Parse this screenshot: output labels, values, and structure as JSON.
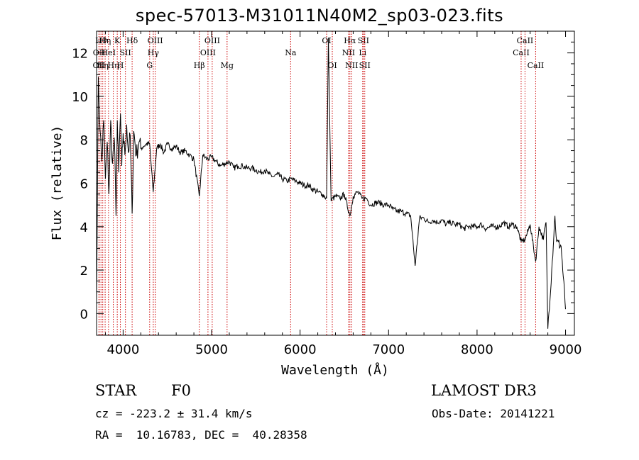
{
  "chart_data": {
    "type": "line",
    "title": "spec-57013-M31011N40M2_sp03-023.fits",
    "xlabel": "Wavelength (Å)",
    "ylabel": "Flux (relative)",
    "xlim": [
      3700,
      9100
    ],
    "ylim": [
      -1.0,
      13.0
    ],
    "xticks": [
      4000,
      5000,
      6000,
      7000,
      8000,
      9000
    ],
    "yticks": [
      0,
      2,
      4,
      6,
      8,
      10,
      12
    ],
    "series": [
      {
        "name": "spectrum",
        "x": [
          3700,
          3720,
          3740,
          3760,
          3780,
          3800,
          3820,
          3840,
          3860,
          3880,
          3900,
          3920,
          3934,
          3950,
          3970,
          3985,
          4000,
          4020,
          4040,
          4060,
          4080,
          4102,
          4120,
          4150,
          4180,
          4200,
          4230,
          4260,
          4300,
          4340,
          4380,
          4420,
          4460,
          4500,
          4550,
          4600,
          4650,
          4700,
          4750,
          4800,
          4861,
          4900,
          4950,
          5000,
          5050,
          5100,
          5150,
          5200,
          5250,
          5300,
          5350,
          5400,
          5450,
          5500,
          5550,
          5600,
          5650,
          5700,
          5750,
          5800,
          5850,
          5900,
          5950,
          6000,
          6050,
          6100,
          6150,
          6200,
          6250,
          6300,
          6320,
          6350,
          6400,
          6450,
          6500,
          6563,
          6600,
          6650,
          6700,
          6750,
          6800,
          6850,
          6900,
          6950,
          7000,
          7050,
          7100,
          7150,
          7200,
          7250,
          7300,
          7350,
          7400,
          7450,
          7500,
          7550,
          7600,
          7650,
          7700,
          7750,
          7800,
          7850,
          7900,
          7950,
          8000,
          8050,
          8100,
          8150,
          8200,
          8250,
          8300,
          8350,
          8400,
          8450,
          8498,
          8542,
          8600,
          8662,
          8700,
          8750,
          8780,
          8800,
          8850,
          8880,
          8900,
          8950,
          9000
        ],
        "y": [
          0.6,
          10.9,
          8.4,
          7.0,
          8.9,
          6.2,
          7.9,
          5.5,
          8.9,
          6.9,
          8.1,
          4.5,
          8.9,
          6.5,
          9.2,
          6.8,
          8.3,
          7.3,
          8.7,
          7.4,
          8.2,
          4.6,
          8.4,
          7.3,
          7.9,
          7.6,
          7.7,
          7.8,
          7.8,
          5.6,
          7.6,
          7.8,
          7.4,
          7.8,
          7.6,
          7.7,
          7.4,
          7.5,
          7.3,
          7.1,
          5.4,
          7.3,
          7.1,
          7.2,
          7.0,
          6.8,
          6.9,
          7.0,
          6.7,
          6.8,
          6.8,
          6.7,
          6.7,
          6.6,
          6.5,
          6.6,
          6.4,
          6.3,
          6.4,
          6.2,
          6.1,
          6.2,
          6.1,
          6.0,
          5.9,
          5.9,
          5.7,
          5.6,
          5.5,
          5.3,
          12.7,
          5.2,
          5.4,
          5.3,
          5.5,
          4.5,
          5.4,
          5.6,
          5.3,
          5.3,
          5.0,
          5.1,
          5.1,
          5.0,
          5.0,
          4.8,
          4.7,
          4.7,
          4.6,
          4.5,
          2.2,
          4.4,
          4.4,
          4.2,
          4.3,
          4.2,
          4.3,
          4.1,
          4.2,
          4.1,
          4.1,
          3.9,
          4.0,
          4.0,
          4.0,
          4.1,
          3.9,
          4.0,
          4.0,
          4.0,
          4.2,
          4.0,
          4.1,
          4.0,
          3.3,
          3.4,
          4.1,
          2.4,
          4.0,
          3.4,
          4.2,
          -0.7,
          2.4,
          4.5,
          3.3,
          3.1,
          0.2
        ]
      }
    ],
    "line_markers": [
      {
        "x": 3727,
        "label": "OII",
        "row": 3
      },
      {
        "x": 3729,
        "label": "OII",
        "row": 2
      },
      {
        "x": 3750,
        "label": "Hθ",
        "row": 1
      },
      {
        "x": 3770,
        "label": "Hη",
        "row": 3
      },
      {
        "x": 3797,
        "label": "Hη",
        "row": 1
      },
      {
        "x": 3835,
        "label": "HeI",
        "row": 2
      },
      {
        "x": 3889,
        "label": "Hη",
        "row": 3
      },
      {
        "x": 3934,
        "label": "K",
        "row": 1
      },
      {
        "x": 3969,
        "label": "H",
        "row": 3
      },
      {
        "x": 4026,
        "label": "SII",
        "row": 2
      },
      {
        "x": 4102,
        "label": "Hδ",
        "row": 1
      },
      {
        "x": 4300,
        "label": "G",
        "row": 3
      },
      {
        "x": 4341,
        "label": "Hγ",
        "row": 2
      },
      {
        "x": 4363,
        "label": "OIII",
        "row": 1
      },
      {
        "x": 4861,
        "label": "Hβ",
        "row": 3
      },
      {
        "x": 4959,
        "label": "OIII",
        "row": 2
      },
      {
        "x": 5007,
        "label": "OIII",
        "row": 1
      },
      {
        "x": 5175,
        "label": "Mg",
        "row": 3
      },
      {
        "x": 5893,
        "label": "Na",
        "row": 2
      },
      {
        "x": 6300,
        "label": "OI",
        "row": 1
      },
      {
        "x": 6364,
        "label": "OI",
        "row": 3
      },
      {
        "x": 6548,
        "label": "NII",
        "row": 2
      },
      {
        "x": 6563,
        "label": "Hα",
        "row": 1
      },
      {
        "x": 6583,
        "label": "NII",
        "row": 3
      },
      {
        "x": 6707,
        "label": "Li",
        "row": 2
      },
      {
        "x": 6716,
        "label": "SII",
        "row": 1
      },
      {
        "x": 6731,
        "label": "SII",
        "row": 3
      },
      {
        "x": 8498,
        "label": "CaII",
        "row": 2
      },
      {
        "x": 8542,
        "label": "CaII",
        "row": 1
      },
      {
        "x": 8662,
        "label": "CaII",
        "row": 3
      }
    ],
    "marker_color": "#cc0000",
    "line_color": "#000000"
  },
  "info": {
    "object_class": "STAR",
    "subclass": "F0",
    "survey": "LAMOST DR3",
    "cz": "cz = -223.2 ± 31.4 km/s",
    "obs_date": "Obs-Date: 20141221",
    "coords": "RA =  10.16783, DEC =  40.28358"
  }
}
